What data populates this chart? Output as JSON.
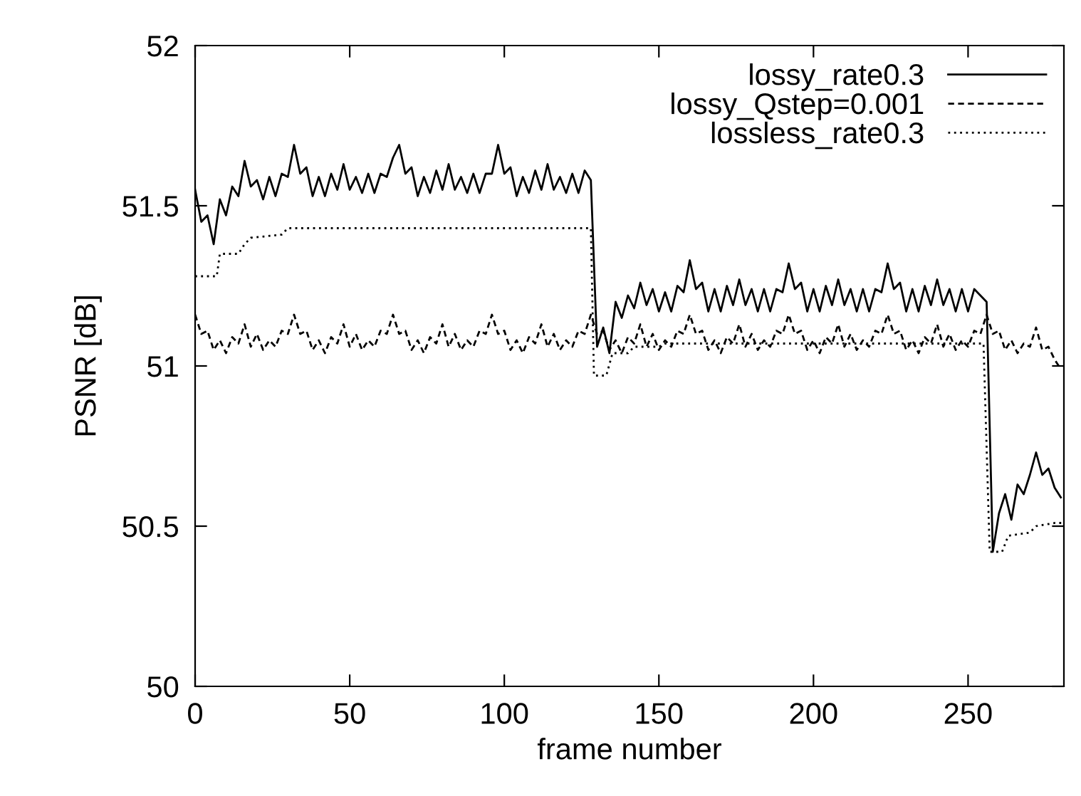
{
  "chart_data": {
    "type": "line",
    "xlabel": "frame number",
    "ylabel": "PSNR [dB]",
    "xlim": [
      0,
      281
    ],
    "ylim": [
      50,
      52
    ],
    "xticks": [
      0,
      50,
      100,
      150,
      200,
      250
    ],
    "yticks": [
      50,
      {
        "value": 50.5,
        "label": "50.5"
      },
      51,
      {
        "value": 51.5,
        "label": "51.5"
      },
      52
    ],
    "grid": false,
    "legend": "top right",
    "marker": "none",
    "series": [
      {
        "name": "lossy_rate0.3",
        "color": "#000000",
        "line_style": "solid",
        "x": [
          0,
          2,
          4,
          6,
          8,
          10,
          12,
          14,
          16,
          18,
          20,
          22,
          24,
          26,
          28,
          30,
          32,
          34,
          36,
          38,
          40,
          42,
          44,
          46,
          48,
          50,
          52,
          54,
          56,
          58,
          60,
          62,
          64,
          66,
          68,
          70,
          72,
          74,
          76,
          78,
          80,
          82,
          84,
          86,
          88,
          90,
          92,
          94,
          96,
          98,
          100,
          102,
          104,
          106,
          108,
          110,
          112,
          114,
          116,
          118,
          120,
          122,
          124,
          126,
          128,
          130,
          132,
          134,
          136,
          138,
          140,
          142,
          144,
          146,
          148,
          150,
          152,
          154,
          156,
          158,
          160,
          162,
          164,
          166,
          168,
          170,
          172,
          174,
          176,
          178,
          180,
          182,
          184,
          186,
          188,
          190,
          192,
          194,
          196,
          198,
          200,
          202,
          204,
          206,
          208,
          210,
          212,
          214,
          216,
          218,
          220,
          222,
          224,
          226,
          228,
          230,
          232,
          234,
          236,
          238,
          240,
          242,
          244,
          246,
          248,
          250,
          252,
          254,
          256,
          258,
          260,
          262,
          264,
          266,
          268,
          270,
          272,
          274,
          276,
          278,
          280
        ],
        "values": [
          51.55,
          51.45,
          51.47,
          51.38,
          51.52,
          51.47,
          51.56,
          51.53,
          51.64,
          51.56,
          51.58,
          51.52,
          51.59,
          51.53,
          51.6,
          51.59,
          51.69,
          51.6,
          51.62,
          51.53,
          51.59,
          51.53,
          51.6,
          51.55,
          51.63,
          51.55,
          51.59,
          51.54,
          51.6,
          51.54,
          51.6,
          51.59,
          51.65,
          51.69,
          51.6,
          51.62,
          51.53,
          51.59,
          51.54,
          51.61,
          51.55,
          51.63,
          51.55,
          51.59,
          51.54,
          51.6,
          51.54,
          51.6,
          51.6,
          51.69,
          51.6,
          51.62,
          51.53,
          51.59,
          51.54,
          51.61,
          51.55,
          51.63,
          51.55,
          51.59,
          51.54,
          51.6,
          51.54,
          51.61,
          51.58,
          51.06,
          51.12,
          51.04,
          51.2,
          51.15,
          51.22,
          51.18,
          51.26,
          51.19,
          51.24,
          51.17,
          51.23,
          51.17,
          51.25,
          51.23,
          51.33,
          51.24,
          51.26,
          51.17,
          51.24,
          51.17,
          51.25,
          51.19,
          51.27,
          51.19,
          51.24,
          51.17,
          51.24,
          51.17,
          51.24,
          51.23,
          51.32,
          51.24,
          51.26,
          51.17,
          51.24,
          51.17,
          51.25,
          51.19,
          51.27,
          51.19,
          51.24,
          51.17,
          51.24,
          51.17,
          51.24,
          51.23,
          51.32,
          51.24,
          51.26,
          51.17,
          51.24,
          51.17,
          51.25,
          51.19,
          51.27,
          51.19,
          51.24,
          51.17,
          51.24,
          51.17,
          51.24,
          51.22,
          51.2,
          50.42,
          50.54,
          50.6,
          50.52,
          50.63,
          50.6,
          50.66,
          50.73,
          50.66,
          50.68,
          50.62,
          50.59
        ]
      },
      {
        "name": "lossy_Qstep=0.001",
        "color": "#000000",
        "line_style": "dashed",
        "x": [
          0,
          2,
          4,
          6,
          8,
          10,
          12,
          14,
          16,
          18,
          20,
          22,
          24,
          26,
          28,
          30,
          32,
          34,
          36,
          38,
          40,
          42,
          44,
          46,
          48,
          50,
          52,
          54,
          56,
          58,
          60,
          62,
          64,
          66,
          68,
          70,
          72,
          74,
          76,
          78,
          80,
          82,
          84,
          86,
          88,
          90,
          92,
          94,
          96,
          98,
          100,
          102,
          104,
          106,
          108,
          110,
          112,
          114,
          116,
          118,
          120,
          122,
          124,
          126,
          128,
          130,
          132,
          134,
          136,
          138,
          140,
          142,
          144,
          146,
          148,
          150,
          152,
          154,
          156,
          158,
          160,
          162,
          164,
          166,
          168,
          170,
          172,
          174,
          176,
          178,
          180,
          182,
          184,
          186,
          188,
          190,
          192,
          194,
          196,
          198,
          200,
          202,
          204,
          206,
          208,
          210,
          212,
          214,
          216,
          218,
          220,
          222,
          224,
          226,
          228,
          230,
          232,
          234,
          236,
          238,
          240,
          242,
          244,
          246,
          248,
          250,
          252,
          254,
          256,
          258,
          260,
          262,
          264,
          266,
          268,
          270,
          272,
          274,
          276,
          278,
          280
        ],
        "values": [
          51.16,
          51.1,
          51.11,
          51.05,
          51.08,
          51.04,
          51.09,
          51.07,
          51.13,
          51.06,
          51.1,
          51.05,
          51.08,
          51.06,
          51.11,
          51.1,
          51.16,
          51.1,
          51.11,
          51.05,
          51.08,
          51.04,
          51.09,
          51.07,
          51.13,
          51.06,
          51.1,
          51.05,
          51.08,
          51.06,
          51.11,
          51.1,
          51.16,
          51.1,
          51.11,
          51.05,
          51.08,
          51.04,
          51.09,
          51.07,
          51.13,
          51.06,
          51.1,
          51.05,
          51.08,
          51.06,
          51.11,
          51.1,
          51.16,
          51.1,
          51.11,
          51.05,
          51.08,
          51.04,
          51.09,
          51.07,
          51.13,
          51.06,
          51.1,
          51.05,
          51.08,
          51.06,
          51.11,
          51.1,
          51.16,
          51.1,
          51.11,
          51.05,
          51.08,
          51.04,
          51.09,
          51.07,
          51.13,
          51.06,
          51.1,
          51.05,
          51.08,
          51.06,
          51.11,
          51.1,
          51.16,
          51.1,
          51.11,
          51.05,
          51.08,
          51.04,
          51.09,
          51.07,
          51.13,
          51.06,
          51.1,
          51.05,
          51.08,
          51.06,
          51.11,
          51.1,
          51.16,
          51.1,
          51.11,
          51.05,
          51.08,
          51.04,
          51.09,
          51.07,
          51.13,
          51.06,
          51.1,
          51.05,
          51.08,
          51.06,
          51.11,
          51.1,
          51.16,
          51.1,
          51.11,
          51.05,
          51.08,
          51.04,
          51.09,
          51.07,
          51.13,
          51.06,
          51.1,
          51.05,
          51.08,
          51.06,
          51.11,
          51.1,
          51.16,
          51.1,
          51.11,
          51.05,
          51.08,
          51.04,
          51.07,
          51.06,
          51.12,
          51.05,
          51.06,
          51.02,
          50.99
        ]
      },
      {
        "name": "lossless_rate0.3",
        "color": "#000000",
        "line_style": "dotted",
        "x": [
          0,
          7,
          8,
          14,
          16,
          18,
          28,
          30,
          128,
          129,
          133,
          135,
          140,
          142,
          150,
          152,
          255,
          257,
          261,
          263,
          270,
          272,
          278,
          281
        ],
        "values": [
          51.28,
          51.28,
          51.35,
          51.35,
          51.38,
          51.4,
          51.41,
          51.43,
          51.43,
          50.97,
          50.97,
          51.04,
          51.04,
          51.06,
          51.06,
          51.07,
          51.07,
          50.42,
          50.42,
          50.47,
          50.48,
          50.5,
          50.51,
          50.51
        ]
      }
    ]
  }
}
